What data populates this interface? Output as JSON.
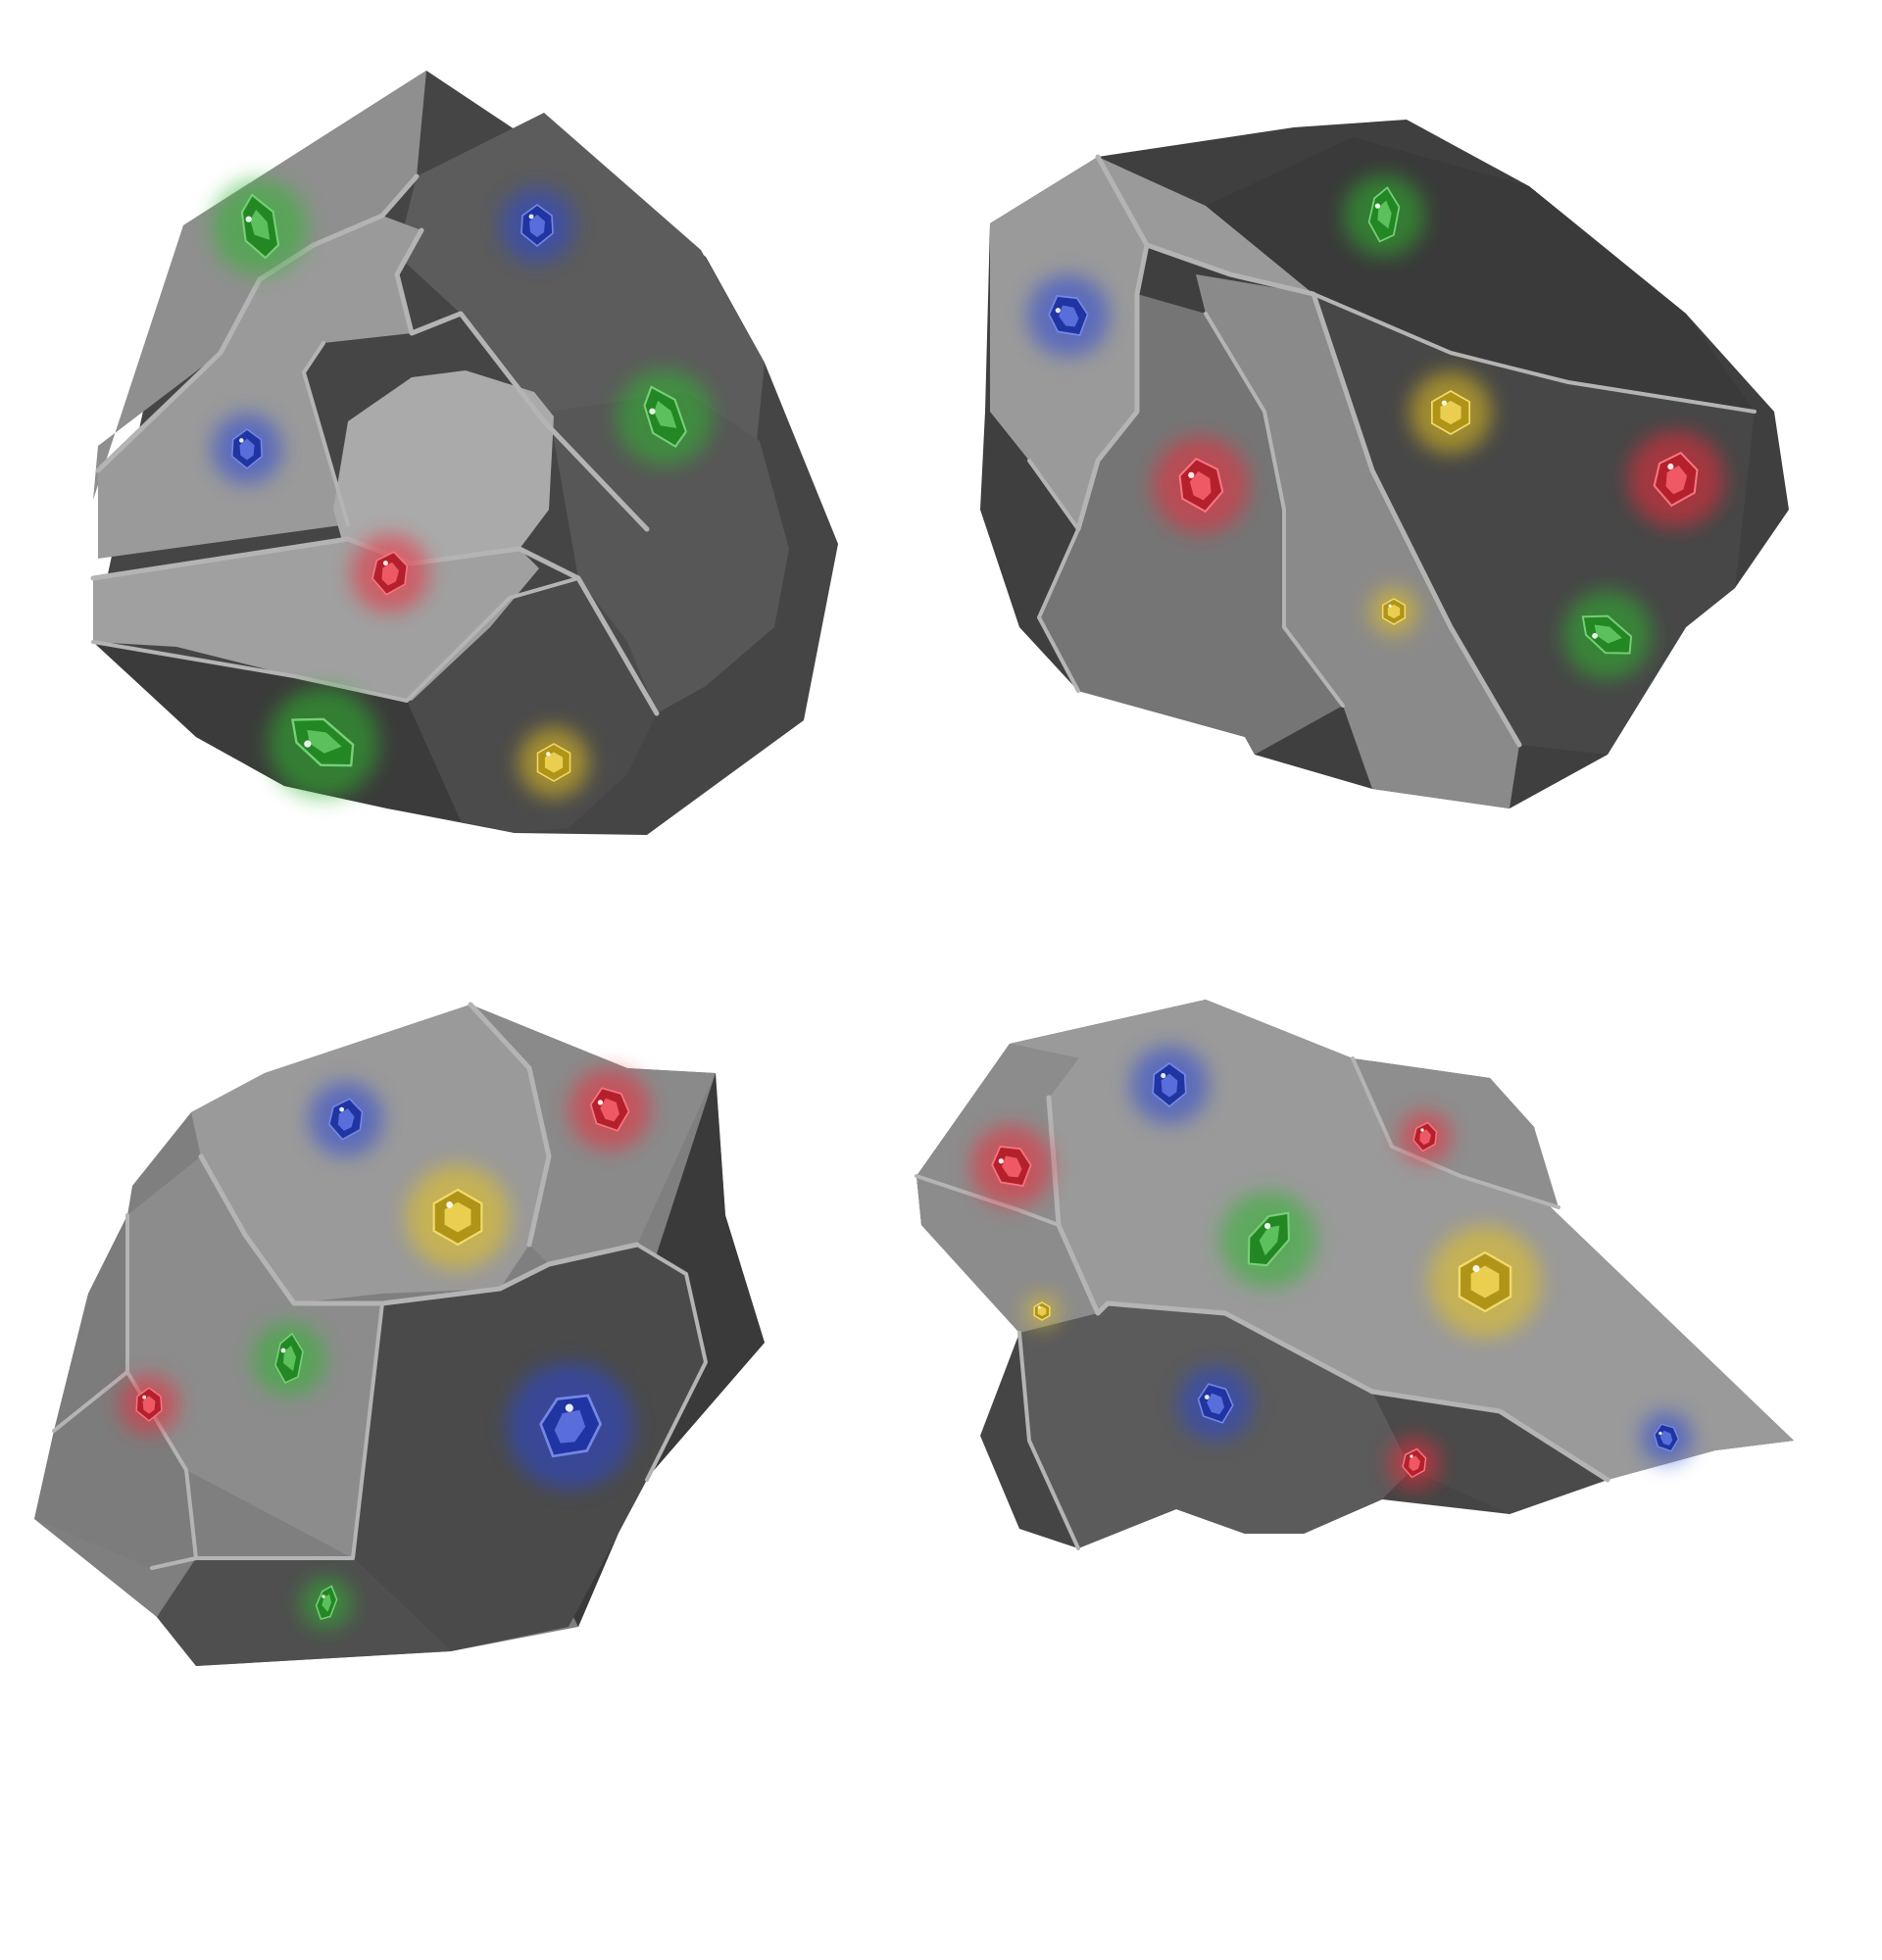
{
  "palette": {
    "background": "#ffffff",
    "rock_light": "#999999",
    "rock_mid": "#7d7d7d",
    "rock_dark": "#5a5a5a",
    "rock_shadow": "#3f3f3f",
    "crack_highlight": "#b3b3b3",
    "gem_green": "#2fb52f",
    "gem_blue": "#2a46d6",
    "gem_red": "#f02a3a",
    "gem_yellow": "#e9c51e"
  },
  "rocks": [
    {
      "name": "rock-top-left",
      "gems": [
        {
          "color": "green"
        },
        {
          "color": "blue"
        },
        {
          "color": "blue"
        },
        {
          "color": "green"
        },
        {
          "color": "red"
        },
        {
          "color": "green"
        },
        {
          "color": "yellow"
        }
      ]
    },
    {
      "name": "rock-top-right",
      "gems": [
        {
          "color": "green"
        },
        {
          "color": "blue"
        },
        {
          "color": "yellow"
        },
        {
          "color": "red"
        },
        {
          "color": "red"
        },
        {
          "color": "yellow"
        },
        {
          "color": "green"
        }
      ]
    },
    {
      "name": "rock-bottom-left",
      "gems": [
        {
          "color": "blue"
        },
        {
          "color": "red"
        },
        {
          "color": "yellow"
        },
        {
          "color": "green"
        },
        {
          "color": "red"
        },
        {
          "color": "blue"
        },
        {
          "color": "green"
        }
      ]
    },
    {
      "name": "rock-bottom-right",
      "gems": [
        {
          "color": "blue"
        },
        {
          "color": "red"
        },
        {
          "color": "red"
        },
        {
          "color": "green"
        },
        {
          "color": "yellow"
        },
        {
          "color": "yellow"
        },
        {
          "color": "blue"
        },
        {
          "color": "red"
        },
        {
          "color": "blue"
        }
      ]
    }
  ]
}
